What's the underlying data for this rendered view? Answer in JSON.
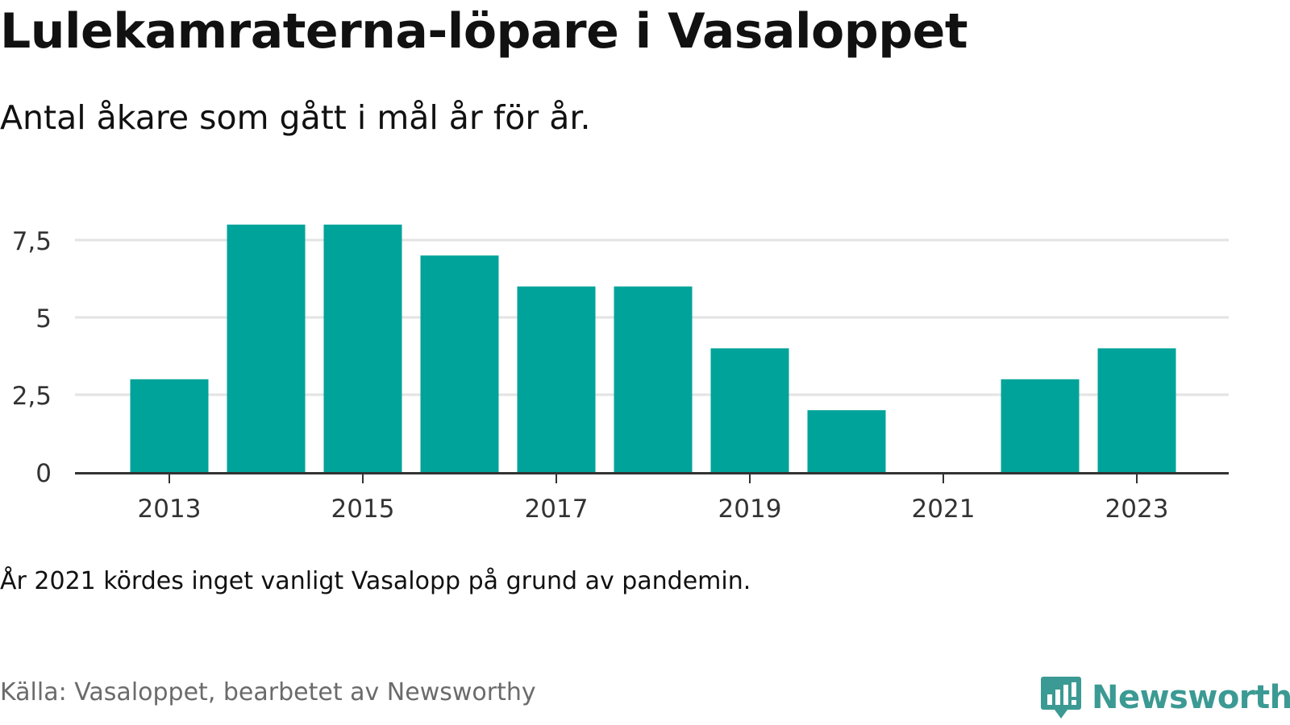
{
  "title": "Lulekamraterna-löpare i Vasaloppet",
  "subtitle": "Antal åkare som gått i mål år för år.",
  "note": "År 2021 kördes inget vanligt Vasalopp på grund av pandemin.",
  "source": "Källa: Vasaloppet, bearbetet av Newsworthy",
  "brand": {
    "name": "Newsworthy",
    "icon": "newsworthy-logo-icon"
  },
  "colors": {
    "bar": "#00a39a",
    "grid": "#e3e3e3",
    "axis": "#333333",
    "tick_text": "#333333",
    "brand": "#3b9a93"
  },
  "chart_data": {
    "type": "bar",
    "categories": [
      "2013",
      "2014",
      "2015",
      "2016",
      "2017",
      "2018",
      "2019",
      "2020",
      "2021",
      "2022",
      "2023"
    ],
    "values": [
      3,
      8,
      8,
      7,
      6,
      6,
      4,
      2,
      0,
      3,
      4
    ],
    "x_tick_labels": [
      "2013",
      "2015",
      "2017",
      "2019",
      "2021",
      "2023"
    ],
    "y_ticks": [
      0,
      2.5,
      5,
      7.5
    ],
    "y_tick_labels": [
      "0",
      "2,5",
      "5",
      "7,5"
    ],
    "ylim": [
      0,
      8.5
    ],
    "grid": true,
    "legend": "none"
  }
}
